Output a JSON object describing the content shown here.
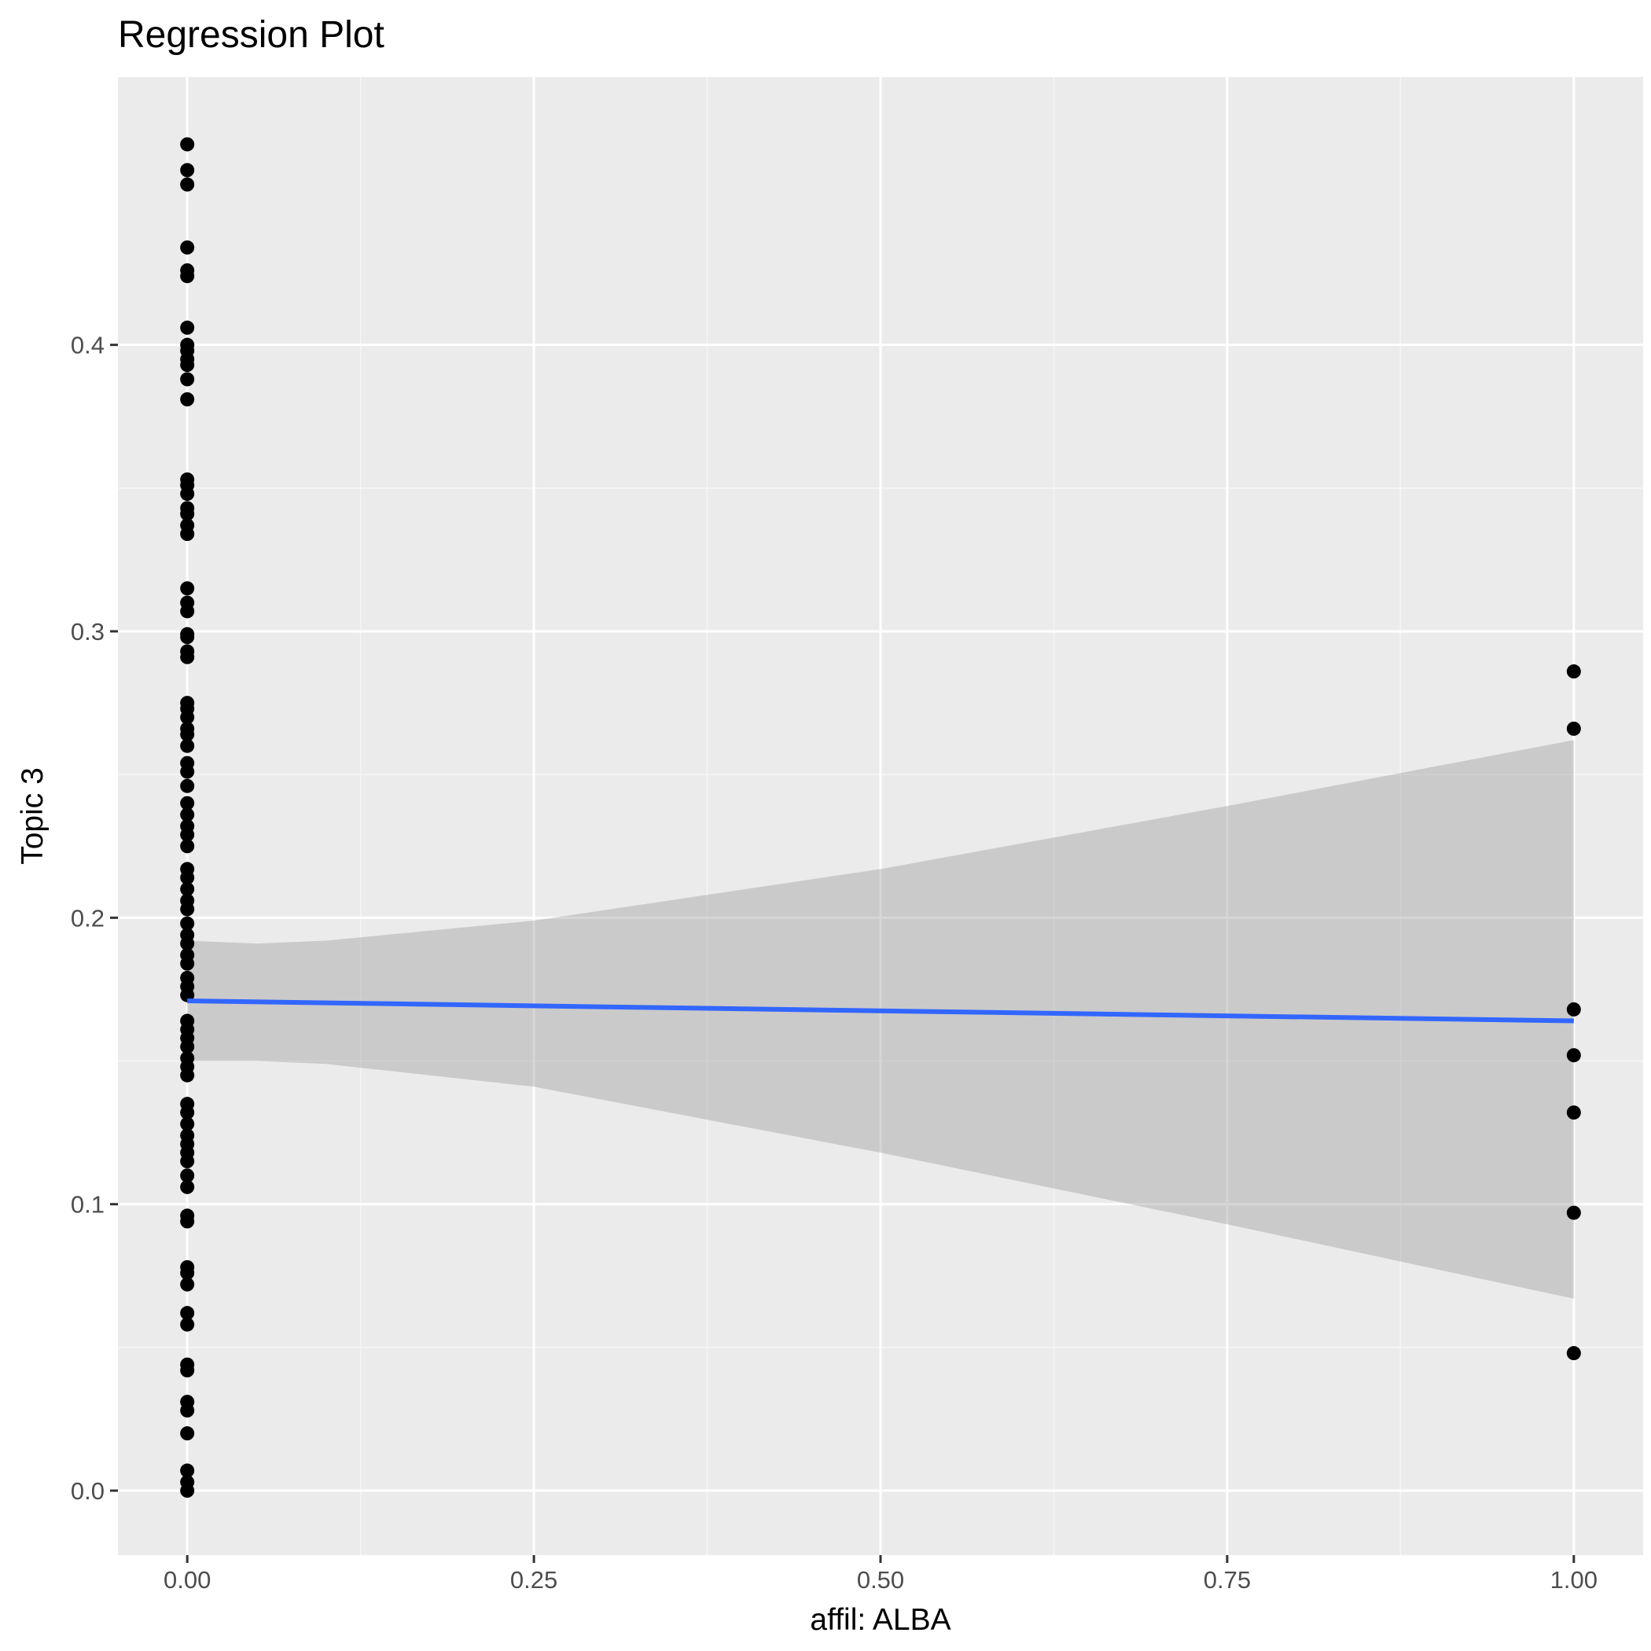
{
  "chart_data": {
    "type": "scatter",
    "title": "Regression Plot",
    "xlabel": "affil: ALBA",
    "ylabel": "Topic 3",
    "xlim": [
      -0.05,
      1.05
    ],
    "ylim": [
      -0.0225,
      0.4935
    ],
    "x_ticks": [
      0.0,
      0.25,
      0.5,
      0.75,
      1.0
    ],
    "x_tick_labels": [
      "0.00",
      "0.25",
      "0.50",
      "0.75",
      "1.00"
    ],
    "y_ticks": [
      0.0,
      0.1,
      0.2,
      0.3,
      0.4
    ],
    "y_tick_labels": [
      "0.0",
      "0.1",
      "0.2",
      "0.3",
      "0.4"
    ],
    "grid": true,
    "colors": {
      "panel_background": "#ebebeb",
      "grid_major": "#ffffff",
      "grid_minor": "#f5f5f5",
      "points": "#000000",
      "regression_line": "#3366ff",
      "confidence_band": "#999999"
    },
    "points": {
      "x0": [
        0.47,
        0.461,
        0.456,
        0.434,
        0.426,
        0.424,
        0.406,
        0.4,
        0.398,
        0.395,
        0.393,
        0.388,
        0.381,
        0.353,
        0.351,
        0.348,
        0.343,
        0.341,
        0.337,
        0.334,
        0.315,
        0.31,
        0.307,
        0.299,
        0.298,
        0.293,
        0.291,
        0.275,
        0.273,
        0.27,
        0.266,
        0.264,
        0.26,
        0.254,
        0.251,
        0.246,
        0.24,
        0.236,
        0.232,
        0.229,
        0.225,
        0.217,
        0.214,
        0.21,
        0.206,
        0.203,
        0.198,
        0.194,
        0.191,
        0.187,
        0.184,
        0.179,
        0.176,
        0.173,
        0.164,
        0.161,
        0.158,
        0.155,
        0.151,
        0.148,
        0.145,
        0.135,
        0.132,
        0.128,
        0.124,
        0.121,
        0.118,
        0.115,
        0.11,
        0.106,
        0.096,
        0.094,
        0.078,
        0.076,
        0.072,
        0.062,
        0.058,
        0.044,
        0.042,
        0.031,
        0.028,
        0.02,
        0.007,
        0.003,
        0.0
      ],
      "x1": [
        0.286,
        0.266,
        0.168,
        0.152,
        0.132,
        0.097,
        0.048
      ]
    },
    "regression": {
      "x": [
        0.0,
        1.0
      ],
      "y": [
        0.171,
        0.164
      ]
    },
    "confidence_band": {
      "x": [
        0.0,
        0.05,
        0.1,
        0.25,
        0.5,
        0.75,
        1.0
      ],
      "upper": [
        0.192,
        0.191,
        0.192,
        0.199,
        0.217,
        0.239,
        0.262
      ],
      "lower": [
        0.15,
        0.15,
        0.149,
        0.141,
        0.118,
        0.093,
        0.067
      ]
    }
  }
}
